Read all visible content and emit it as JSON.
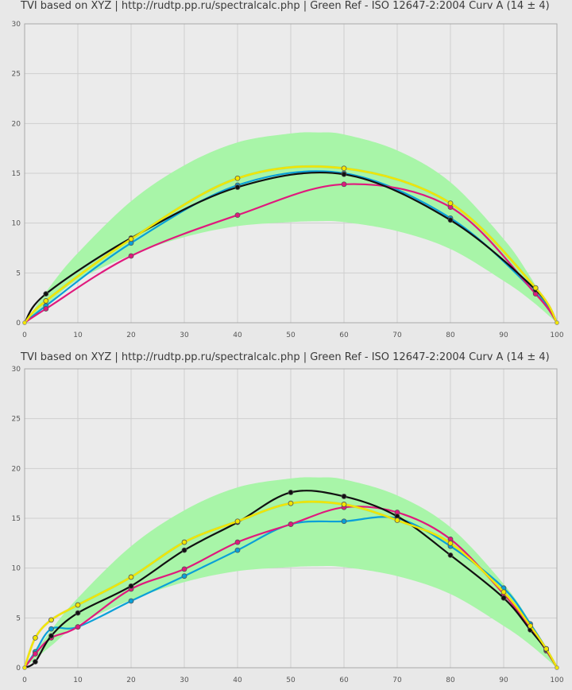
{
  "chart_data": [
    {
      "type": "line",
      "title": "TVI based on XYZ | http://rudtp.pp.ru/spectralcalc.php | Green Ref - ISO 12647-2:2004 Curv A (14 ± 4)",
      "xlim": [
        0,
        100
      ],
      "ylim": [
        0,
        30
      ],
      "x_ticks": [
        "0",
        "10",
        "20",
        "30",
        "40",
        "50",
        "60",
        "70",
        "80",
        "90",
        "100"
      ],
      "y_ticks": [
        "0",
        "5",
        "10",
        "15",
        "20",
        "25",
        "30"
      ],
      "grid": true,
      "tolerance_band": {
        "color": "#a8f5a8",
        "x": [
          0,
          5,
          10,
          20,
          30,
          40,
          50,
          55,
          60,
          70,
          80,
          90,
          95,
          100
        ],
        "upper": [
          0,
          3.8,
          7,
          12.2,
          15.8,
          18.1,
          19,
          19.1,
          18.9,
          17.3,
          14.1,
          8.4,
          4.6,
          0
        ],
        "lower": [
          0,
          2.2,
          4.3,
          6.8,
          8.6,
          9.7,
          10.1,
          10.2,
          10.1,
          9.2,
          7.4,
          4.2,
          2.3,
          0
        ]
      },
      "series": [
        {
          "color": "#0aa0d8",
          "x": [
            0,
            4,
            20,
            40,
            60,
            80,
            96,
            100
          ],
          "y": [
            0,
            1.7,
            8,
            13.8,
            15,
            10.5,
            3,
            0
          ]
        },
        {
          "color": "#e0197d",
          "x": [
            0,
            4,
            20,
            40,
            60,
            80,
            96,
            100
          ],
          "y": [
            0,
            1.4,
            6.7,
            10.8,
            13.9,
            11.6,
            2.9,
            0
          ]
        },
        {
          "color": "#111111",
          "x": [
            0,
            4,
            20,
            40,
            60,
            80,
            96,
            100
          ],
          "y": [
            0,
            2.9,
            8.5,
            13.6,
            14.9,
            10.3,
            3.3,
            0
          ]
        },
        {
          "color": "#f2e600",
          "x": [
            0,
            4,
            20,
            40,
            60,
            80,
            96,
            100
          ],
          "y": [
            0,
            2.2,
            8.4,
            14.5,
            15.5,
            12,
            3.5,
            0
          ]
        }
      ]
    },
    {
      "type": "line",
      "title": "TVI based on XYZ | http://rudtp.pp.ru/spectralcalc.php | Green Ref - ISO 12647-2:2004 Curv A (14 ± 4)",
      "xlim": [
        0,
        100
      ],
      "ylim": [
        0,
        30
      ],
      "x_ticks": [
        "0",
        "10",
        "20",
        "30",
        "40",
        "50",
        "60",
        "70",
        "80",
        "90",
        "100"
      ],
      "y_ticks": [
        "0",
        "5",
        "10",
        "15",
        "20",
        "25",
        "30"
      ],
      "grid": true,
      "tolerance_band": {
        "color": "#a8f5a8",
        "x": [
          0,
          5,
          10,
          20,
          30,
          40,
          50,
          55,
          60,
          70,
          80,
          90,
          95,
          100
        ],
        "upper": [
          0,
          3.8,
          7,
          12.2,
          15.8,
          18.1,
          19,
          19.1,
          18.9,
          17.3,
          14.1,
          8.4,
          4.6,
          0
        ],
        "lower": [
          0,
          2.2,
          4.3,
          6.8,
          8.6,
          9.7,
          10.1,
          10.2,
          10.1,
          9.2,
          7.4,
          4.2,
          2.3,
          0
        ]
      },
      "series": [
        {
          "color": "#0aa0d8",
          "x": [
            0,
            2,
            5,
            10,
            20,
            30,
            40,
            50,
            60,
            70,
            80,
            90,
            95,
            98,
            100
          ],
          "y": [
            0,
            1.6,
            3.9,
            4.1,
            6.7,
            9.2,
            11.8,
            14.4,
            14.7,
            15,
            12.2,
            8,
            4.4,
            1.9,
            0
          ]
        },
        {
          "color": "#e0197d",
          "x": [
            0,
            2,
            5,
            10,
            20,
            30,
            40,
            50,
            60,
            70,
            80,
            90,
            95,
            98,
            100
          ],
          "y": [
            0,
            1.4,
            3,
            4.1,
            7.9,
            9.9,
            12.6,
            14.4,
            16.1,
            15.6,
            12.9,
            7.4,
            4,
            1.7,
            0
          ]
        },
        {
          "color": "#111111",
          "x": [
            0,
            2,
            5,
            10,
            20,
            30,
            40,
            50,
            60,
            70,
            80,
            90,
            95,
            98,
            100
          ],
          "y": [
            0,
            0.6,
            3.2,
            5.5,
            8.2,
            11.8,
            14.6,
            17.6,
            17.2,
            15.2,
            11.3,
            7,
            3.8,
            1.8,
            0
          ]
        },
        {
          "color": "#f2e600",
          "x": [
            0,
            2,
            5,
            10,
            20,
            30,
            40,
            50,
            60,
            70,
            80,
            90,
            95,
            98,
            100
          ],
          "y": [
            0,
            3,
            4.8,
            6.3,
            9.1,
            12.6,
            14.7,
            16.5,
            16.4,
            14.8,
            12.5,
            7.6,
            4.2,
            1.9,
            0
          ]
        }
      ]
    }
  ]
}
